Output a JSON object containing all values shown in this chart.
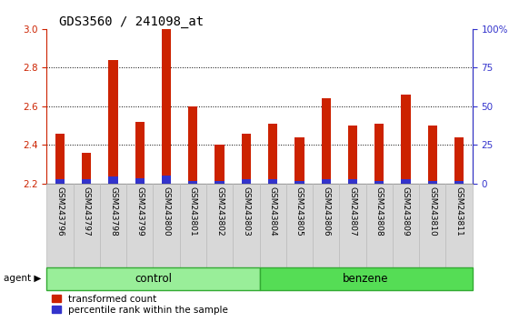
{
  "title": "GDS3560 / 241098_at",
  "samples": [
    "GSM243796",
    "GSM243797",
    "GSM243798",
    "GSM243799",
    "GSM243800",
    "GSM243801",
    "GSM243802",
    "GSM243803",
    "GSM243804",
    "GSM243805",
    "GSM243806",
    "GSM243807",
    "GSM243808",
    "GSM243809",
    "GSM243810",
    "GSM243811"
  ],
  "red_values": [
    2.46,
    2.36,
    2.84,
    2.52,
    3.0,
    2.6,
    2.4,
    2.46,
    2.51,
    2.44,
    2.64,
    2.5,
    2.51,
    2.66,
    2.5,
    2.44
  ],
  "blue_values": [
    2.222,
    2.222,
    2.235,
    2.228,
    2.24,
    2.215,
    2.215,
    2.222,
    2.222,
    2.215,
    2.222,
    2.222,
    2.215,
    2.222,
    2.215,
    2.215
  ],
  "ylim_left": [
    2.2,
    3.0
  ],
  "ylim_right": [
    0,
    100
  ],
  "yticks_left": [
    2.2,
    2.4,
    2.6,
    2.8,
    3.0
  ],
  "yticks_right": [
    0,
    25,
    50,
    75,
    100
  ],
  "ytick_labels_right": [
    "0",
    "25",
    "50",
    "75",
    "100%"
  ],
  "bar_bottom": 2.2,
  "bar_width": 0.35,
  "red_color": "#cc2200",
  "blue_color": "#3333cc",
  "control_color": "#99ee99",
  "benzene_color": "#55dd55",
  "control_label": "control",
  "benzene_label": "benzene",
  "agent_label": "agent",
  "legend_red": "transformed count",
  "legend_blue": "percentile rank within the sample",
  "title_fontsize": 10,
  "axis_color_left": "#cc2200",
  "axis_color_right": "#3333cc",
  "bg_color": "#d8d8d8",
  "grid_yticks": [
    2.4,
    2.6,
    2.8
  ],
  "n_control": 8,
  "n_benzene": 8
}
